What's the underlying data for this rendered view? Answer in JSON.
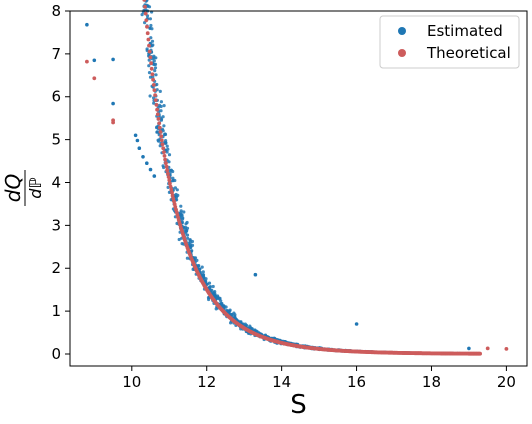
{
  "chart_data": {
    "type": "scatter",
    "xlabel": "S",
    "ylabel": {
      "numerator": "dQ",
      "denominator": "dℙ"
    },
    "xlim": [
      8.35,
      20.55
    ],
    "ylim": [
      -0.28,
      8.0
    ],
    "xticks": [
      10,
      12,
      14,
      16,
      18,
      20
    ],
    "yticks": [
      0,
      1,
      2,
      3,
      4,
      5,
      6,
      7,
      8
    ],
    "xtick_labels": [
      "10",
      "12",
      "14",
      "16",
      "18",
      "20"
    ],
    "ytick_labels": [
      "0",
      "1",
      "2",
      "3",
      "4",
      "5",
      "6",
      "7",
      "8"
    ],
    "grid": false,
    "legend_position": "top-right",
    "series": [
      {
        "name": "Estimated",
        "color": "#1f77b4",
        "points": [
          [
            8.8,
            7.68
          ],
          [
            9.0,
            6.85
          ],
          [
            9.5,
            6.87
          ],
          [
            9.5,
            5.84
          ],
          [
            10.1,
            5.1
          ],
          [
            10.15,
            4.98
          ],
          [
            10.2,
            4.8
          ],
          [
            10.3,
            4.6
          ],
          [
            10.4,
            4.45
          ],
          [
            10.5,
            4.3
          ],
          [
            10.6,
            4.15
          ],
          [
            13.3,
            1.85
          ],
          [
            16.0,
            0.7
          ],
          [
            19.0,
            0.13
          ]
        ],
        "band": {
          "x_start": 10.1,
          "x_end": 19.2,
          "spread": 0.16
        }
      },
      {
        "name": "Theoretical",
        "color": "#cd5c5c",
        "points": [
          [
            8.8,
            6.82
          ],
          [
            9.0,
            6.43
          ],
          [
            9.5,
            5.45
          ],
          [
            9.5,
            5.4
          ],
          [
            19.5,
            0.13
          ],
          [
            20.0,
            0.12
          ]
        ],
        "curve": {
          "x_start": 10.1,
          "x_end": 19.3
        }
      }
    ]
  }
}
